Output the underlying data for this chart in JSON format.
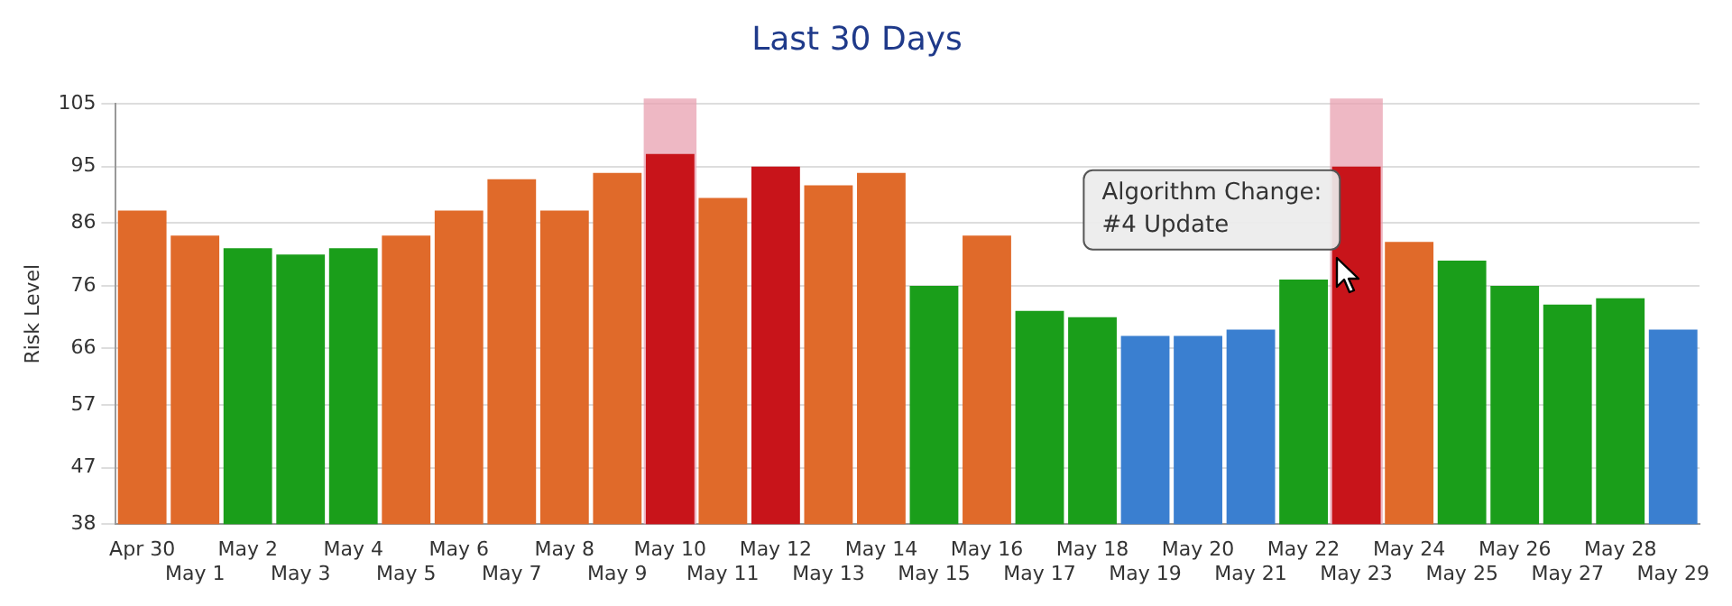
{
  "chart_data": {
    "type": "bar",
    "title": "Last 30 Days",
    "ylabel": "Risk Level",
    "categories": [
      "Apr 30",
      "May 1",
      "May 2",
      "May 3",
      "May 4",
      "May 5",
      "May 6",
      "May 7",
      "May 8",
      "May 9",
      "May 10",
      "May 11",
      "May 12",
      "May 13",
      "May 14",
      "May 15",
      "May 16",
      "May 17",
      "May 18",
      "May 19",
      "May 20",
      "May 21",
      "May 22",
      "May 23",
      "May 24",
      "May 25",
      "May 26",
      "May 27",
      "May 28",
      "May 29"
    ],
    "values": [
      88,
      84,
      82,
      81,
      82,
      84,
      88,
      93,
      88,
      94,
      97,
      90,
      95,
      92,
      94,
      76,
      84,
      72,
      71,
      68,
      68,
      69,
      77,
      95,
      83,
      80,
      76,
      73,
      74,
      69
    ],
    "colors": [
      "#e06a2a",
      "#e06a2a",
      "#1a9e1a",
      "#1a9e1a",
      "#1a9e1a",
      "#e06a2a",
      "#e06a2a",
      "#e06a2a",
      "#e06a2a",
      "#e06a2a",
      "#c8141a",
      "#e06a2a",
      "#c8141a",
      "#e06a2a",
      "#e06a2a",
      "#1a9e1a",
      "#e06a2a",
      "#1a9e1a",
      "#1a9e1a",
      "#3a7fd0",
      "#3a7fd0",
      "#3a7fd0",
      "#1a9e1a",
      "#c8141a",
      "#e06a2a",
      "#1a9e1a",
      "#1a9e1a",
      "#1a9e1a",
      "#1a9e1a",
      "#3a7fd0"
    ],
    "ylim": [
      38,
      105
    ],
    "yticks": [
      38,
      47,
      57,
      66,
      76,
      86,
      95,
      105
    ],
    "grid": "y",
    "bands": [
      {
        "axis": "x",
        "from": "May 10",
        "to": "May 10",
        "color": "#e8a0b0"
      },
      {
        "axis": "x",
        "from": "May 23",
        "to": "May 23",
        "color": "#e8a0b0"
      }
    ],
    "annotations": [
      {
        "text": "Algorithm Change:\n#4 Update",
        "x": "May 23",
        "y": 95
      }
    ]
  }
}
